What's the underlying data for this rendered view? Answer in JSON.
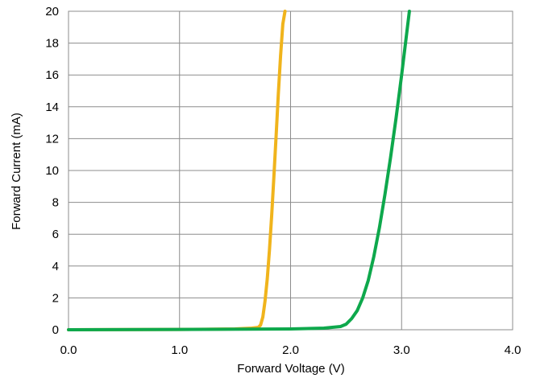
{
  "chart_data": {
    "type": "line",
    "xlabel": "Forward Voltage (V)",
    "ylabel": "Forward Current (mA)",
    "xlim": [
      0,
      4
    ],
    "ylim": [
      0,
      20
    ],
    "x_ticks": [
      "0.0",
      "1.0",
      "2.0",
      "3.0",
      "4.0"
    ],
    "y_ticks": [
      "0",
      "2",
      "4",
      "6",
      "8",
      "10",
      "12",
      "14",
      "16",
      "18",
      "20"
    ],
    "grid": true,
    "legend": "none",
    "series": [
      {
        "color": "#F0B41C",
        "x": [
          0.0,
          1.0,
          1.5,
          1.65,
          1.71,
          1.73,
          1.75,
          1.77,
          1.79,
          1.81,
          1.83,
          1.85,
          1.87,
          1.89,
          1.91,
          1.93,
          1.95
        ],
        "y": [
          0.0,
          0.02,
          0.05,
          0.1,
          0.15,
          0.3,
          0.8,
          1.8,
          3.2,
          5.0,
          7.2,
          9.6,
          12.2,
          14.8,
          17.2,
          19.2,
          20.0
        ]
      },
      {
        "color": "#0EA84C",
        "x": [
          0.0,
          1.0,
          2.0,
          2.3,
          2.45,
          2.5,
          2.55,
          2.6,
          2.65,
          2.7,
          2.75,
          2.8,
          2.85,
          2.9,
          2.95,
          3.0,
          3.04,
          3.07
        ],
        "y": [
          0.0,
          0.02,
          0.05,
          0.1,
          0.2,
          0.35,
          0.7,
          1.2,
          2.0,
          3.1,
          4.6,
          6.4,
          8.5,
          10.8,
          13.3,
          16.0,
          18.3,
          20.0
        ]
      }
    ]
  }
}
